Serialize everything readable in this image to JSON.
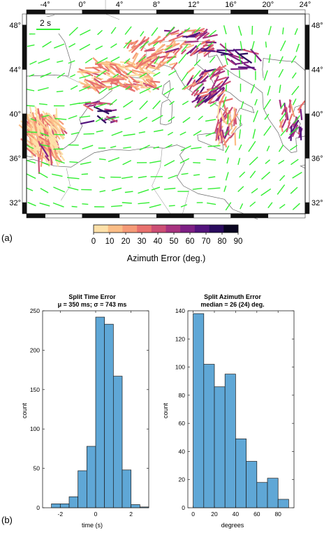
{
  "panel_labels": {
    "a": "(a)",
    "b": "(b)"
  },
  "map": {
    "lon_ticks": [
      "-4°",
      "0°",
      "4°",
      "8°",
      "12°",
      "16°",
      "20°",
      "24°"
    ],
    "lat_ticks": [
      "48°",
      "44°",
      "40°",
      "36°",
      "32°"
    ],
    "lon_range": [
      -6,
      24
    ],
    "lat_range": [
      31,
      49
    ],
    "scale_bar_label": "2 s",
    "good_color": "#33ee33",
    "colorbar": {
      "label": "Azimuth Error (deg.)",
      "ticks": [
        "0",
        "10",
        "20",
        "30",
        "40",
        "50",
        "60",
        "70",
        "80",
        "90"
      ],
      "colors": [
        "#fde0a8",
        "#fbbd86",
        "#f59a77",
        "#e8716e",
        "#cc4e74",
        "#a7327f",
        "#7d1f84",
        "#52137c",
        "#2a0b5e",
        "#0a0520"
      ]
    }
  },
  "chart_data": [
    {
      "type": "bar",
      "title": "Split Time Error",
      "subtitle": "μ = 350 ms; σ = 743 ms",
      "xlabel": "time (s)",
      "ylabel": "count",
      "bin_edges": [
        -2.5,
        -2.0,
        -1.5,
        -1.0,
        -0.5,
        0.0,
        0.5,
        1.0,
        1.5,
        2.0,
        2.5,
        3.0
      ],
      "values": [
        5,
        5,
        14,
        47,
        78,
        242,
        233,
        167,
        48,
        4,
        1
      ],
      "xlim": [
        -3,
        3
      ],
      "ylim": [
        0,
        250
      ],
      "x_ticks": [
        -2,
        0,
        2
      ],
      "y_ticks": [
        0,
        50,
        100,
        150,
        200,
        250
      ],
      "bar_color": "#5fa7d6",
      "grid": false
    },
    {
      "type": "bar",
      "title": "Split Azimuth Error",
      "subtitle": "median = 26 (24) deg.",
      "xlabel": "degrees",
      "ylabel": "count",
      "bin_edges": [
        0,
        10,
        20,
        30,
        40,
        50,
        60,
        70,
        80,
        90
      ],
      "values": [
        138,
        102,
        86,
        95,
        49,
        33,
        18,
        21,
        6
      ],
      "xlim": [
        -5,
        95
      ],
      "ylim": [
        0,
        140
      ],
      "x_ticks": [
        0,
        20,
        40,
        60,
        80
      ],
      "y_ticks": [
        0,
        20,
        40,
        60,
        80,
        100,
        120,
        140
      ],
      "bar_color": "#5fa7d6",
      "grid": false
    }
  ]
}
